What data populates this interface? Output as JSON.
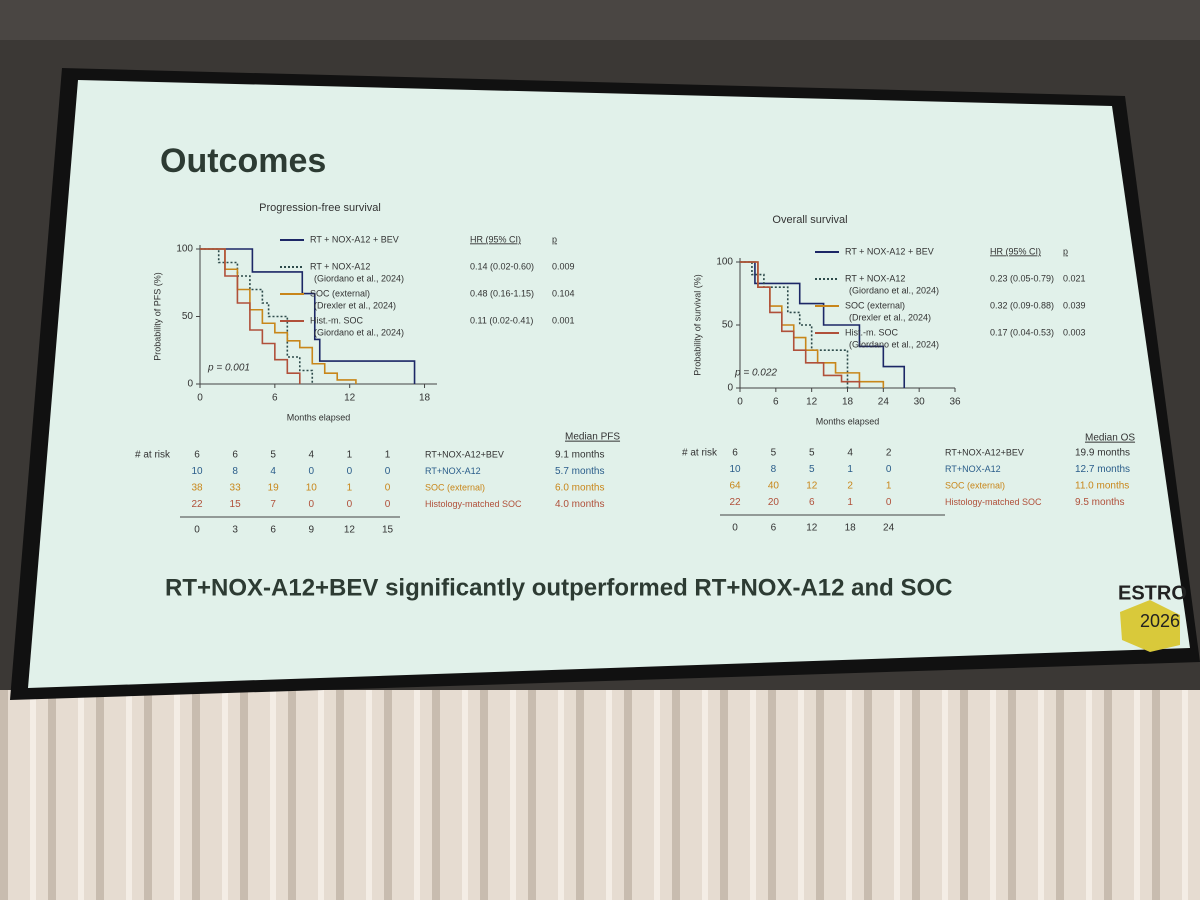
{
  "slide": {
    "title": "Outcomes",
    "conclusion": "RT+NOX-A12+BEV significantly outperformed RT+NOX-A12 and SOC",
    "logo": [
      "ESTRO",
      "2026"
    ]
  },
  "chart_data": [
    {
      "type": "line",
      "step": true,
      "title": "Progression-free survival",
      "y_label": "Probability of PFS (%)",
      "x_label": "Months elapsed",
      "annotation": "p = 0.001",
      "xlim": [
        0,
        19
      ],
      "xticks": [
        0,
        6,
        12,
        18
      ],
      "ylim": [
        0,
        100
      ],
      "yticks": [
        0,
        50,
        100
      ],
      "legend_headers": [
        "HR (95% CI)",
        "p"
      ],
      "series": [
        {
          "name": "RT + NOX-A12 + BEV",
          "color": "#1c2766",
          "dash": "none",
          "x": [
            0,
            4.2,
            8.2,
            9.2,
            9.6,
            17.2
          ],
          "values": [
            100,
            83,
            67,
            33,
            17,
            0
          ]
        },
        {
          "name": "RT + NOX-A12",
          "reference": "(Giordano et al., 2024)",
          "hr": "0.14 (0.02-0.60)",
          "p": "0.009",
          "color": "#2d4a4a",
          "dash": "2,2",
          "x": [
            0,
            1.5,
            3,
            4,
            5,
            5.5,
            7,
            8,
            9
          ],
          "values": [
            100,
            90,
            80,
            70,
            60,
            50,
            20,
            10,
            0
          ]
        },
        {
          "name": "SOC (external)",
          "reference": "(Drexler et al., 2024)",
          "hr": "0.48 (0.16-1.15)",
          "p": "0.104",
          "color": "#c8861a",
          "dash": "none",
          "x": [
            0,
            2,
            3,
            4,
            5,
            6,
            7,
            8,
            9,
            10,
            11,
            12.5
          ],
          "values": [
            100,
            85,
            70,
            55,
            45,
            38,
            32,
            27,
            15,
            8,
            3,
            0
          ]
        },
        {
          "name": "Hist.-m. SOC",
          "reference": "(Giordano et al., 2024)",
          "hr": "0.11 (0.02-0.41)",
          "p": "0.001",
          "color": "#b0503a",
          "dash": "none",
          "x": [
            0,
            2,
            3,
            4,
            5,
            6,
            7,
            8
          ],
          "values": [
            100,
            80,
            60,
            40,
            30,
            18,
            8,
            0
          ]
        }
      ],
      "risk_table": {
        "label": "# at risk",
        "times": [
          0,
          3,
          6,
          9,
          12,
          15
        ],
        "median_header": "Median PFS",
        "rows": [
          {
            "name": "RT+NOX-A12+BEV",
            "color": "#333333",
            "counts": [
              6,
              6,
              5,
              4,
              1,
              1
            ],
            "median": "9.1 months"
          },
          {
            "name": "RT+NOX-A12",
            "color": "#2a5d8a",
            "counts": [
              10,
              8,
              4,
              0,
              0,
              0
            ],
            "median": "5.7 months"
          },
          {
            "name": "SOC (external)",
            "color": "#c8861a",
            "counts": [
              38,
              33,
              19,
              10,
              1,
              0
            ],
            "median": "6.0 months"
          },
          {
            "name": "Histology-matched SOC",
            "color": "#b0503a",
            "counts": [
              22,
              15,
              7,
              0,
              0,
              0
            ],
            "median": "4.0 months"
          }
        ]
      }
    },
    {
      "type": "line",
      "step": true,
      "title": "Overall survival",
      "y_label": "Probability of survival (%)",
      "x_label": "Months elapsed",
      "annotation": "p = 0.022",
      "xlim": [
        0,
        36
      ],
      "xticks": [
        0,
        6,
        12,
        18,
        24,
        30,
        36
      ],
      "ylim": [
        0,
        100
      ],
      "yticks": [
        0,
        50,
        100
      ],
      "legend_headers": [
        "HR (95% CI)",
        "p"
      ],
      "series": [
        {
          "name": "RT + NOX-A12 + BEV",
          "color": "#1c2766",
          "dash": "none",
          "x": [
            0,
            2.5,
            10,
            14,
            20,
            24,
            27.5
          ],
          "values": [
            100,
            83,
            67,
            50,
            33,
            17,
            0
          ]
        },
        {
          "name": "RT + NOX-A12",
          "reference": "(Giordano et al., 2024)",
          "hr": "0.23 (0.05-0.79)",
          "p": "0.021",
          "color": "#2d4a4a",
          "dash": "2,2",
          "x": [
            0,
            2,
            4,
            8,
            10,
            12,
            18
          ],
          "values": [
            100,
            90,
            80,
            60,
            50,
            30,
            0
          ]
        },
        {
          "name": "SOC (external)",
          "reference": "(Drexler et al., 2024)",
          "hr": "0.32 (0.09-0.88)",
          "p": "0.039",
          "color": "#c8861a",
          "dash": "none",
          "x": [
            0,
            3,
            5,
            7,
            9,
            11,
            13,
            16,
            20,
            24
          ],
          "values": [
            100,
            80,
            65,
            50,
            40,
            30,
            20,
            12,
            5,
            0
          ]
        },
        {
          "name": "Hist.-m. SOC",
          "reference": "(Giordano et al., 2024)",
          "hr": "0.17 (0.04-0.53)",
          "p": "0.003",
          "color": "#b0503a",
          "dash": "none",
          "x": [
            0,
            3,
            5,
            7,
            9,
            11,
            14,
            17,
            20
          ],
          "values": [
            100,
            80,
            60,
            45,
            30,
            20,
            10,
            5,
            0
          ]
        }
      ],
      "risk_table": {
        "label": "# at risk",
        "times": [
          0,
          6,
          12,
          18,
          24
        ],
        "median_header": "Median OS",
        "rows": [
          {
            "name": "RT+NOX-A12+BEV",
            "color": "#333333",
            "counts": [
              6,
              5,
              5,
              4,
              2
            ],
            "median": "19.9 months"
          },
          {
            "name": "RT+NOX-A12",
            "color": "#2a5d8a",
            "counts": [
              10,
              8,
              5,
              1,
              0
            ],
            "median": "12.7 months"
          },
          {
            "name": "SOC (external)",
            "color": "#c8861a",
            "counts": [
              64,
              40,
              12,
              2,
              1
            ],
            "median": "11.0 months"
          },
          {
            "name": "Histology-matched SOC",
            "color": "#b0503a",
            "counts": [
              22,
              20,
              6,
              1,
              0
            ],
            "median": "9.5 months"
          }
        ]
      }
    }
  ]
}
